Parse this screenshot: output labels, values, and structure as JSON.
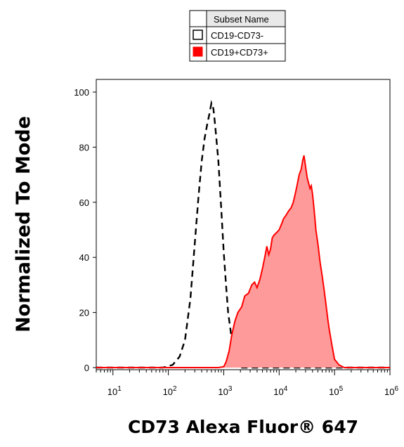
{
  "chart_data": {
    "type": "area",
    "xlabel": "CD73 Alexa Fluor® 647",
    "ylabel": "Normalized To Mode",
    "x_scale": "log",
    "xlim": [
      5,
      1000000
    ],
    "ylim": [
      0,
      100
    ],
    "y_ticks": [
      "0",
      "20",
      "40",
      "60",
      "80",
      "100"
    ],
    "x_ticks": [
      {
        "base": "10",
        "exp": "1",
        "value": 10
      },
      {
        "base": "10",
        "exp": "2",
        "value": 100
      },
      {
        "base": "10",
        "exp": "3",
        "value": 1000
      },
      {
        "base": "10",
        "exp": "4",
        "value": 10000
      },
      {
        "base": "10",
        "exp": "5",
        "value": 100000
      },
      {
        "base": "10",
        "exp": "6",
        "value": 1000000
      }
    ],
    "legend": {
      "placement": "top-center",
      "header": "Subset Name",
      "entries": [
        "CD19-CD73-",
        "CD19+CD73+"
      ]
    },
    "series": [
      {
        "name": "CD19-CD73-",
        "style": "dashed-outline",
        "color": "#000000",
        "points": [
          [
            5,
            0
          ],
          [
            80,
            0
          ],
          [
            120,
            1
          ],
          [
            160,
            4
          ],
          [
            200,
            10
          ],
          [
            250,
            25
          ],
          [
            300,
            45
          ],
          [
            350,
            62
          ],
          [
            400,
            75
          ],
          [
            450,
            83
          ],
          [
            500,
            88
          ],
          [
            550,
            92
          ],
          [
            600,
            96
          ],
          [
            650,
            94
          ],
          [
            700,
            88
          ],
          [
            800,
            75
          ],
          [
            900,
            58
          ],
          [
            1000,
            42
          ],
          [
            1100,
            30
          ],
          [
            1200,
            20
          ],
          [
            1400,
            10
          ],
          [
            1700,
            3
          ],
          [
            2000,
            0
          ],
          [
            1000000,
            0
          ]
        ]
      },
      {
        "name": "CD19+CD73+",
        "style": "filled",
        "color": "#ff0000",
        "fill": "#ff9a9a",
        "points": [
          [
            5,
            0
          ],
          [
            800,
            0
          ],
          [
            1000,
            0.3
          ],
          [
            1100,
            2
          ],
          [
            1250,
            6
          ],
          [
            1400,
            12
          ],
          [
            1600,
            17
          ],
          [
            1800,
            20
          ],
          [
            2100,
            22
          ],
          [
            2400,
            26
          ],
          [
            2800,
            27
          ],
          [
            3200,
            30
          ],
          [
            3600,
            31
          ],
          [
            4000,
            29
          ],
          [
            4500,
            32
          ],
          [
            5000,
            36
          ],
          [
            5500,
            40
          ],
          [
            6000,
            44
          ],
          [
            6500,
            41
          ],
          [
            7000,
            43
          ],
          [
            7500,
            47
          ],
          [
            8000,
            48
          ],
          [
            9000,
            49
          ],
          [
            10000,
            50
          ],
          [
            11000,
            52
          ],
          [
            12000,
            54
          ],
          [
            13000,
            55
          ],
          [
            14000,
            56
          ],
          [
            15000,
            57
          ],
          [
            16500,
            58
          ],
          [
            18000,
            60
          ],
          [
            19500,
            63
          ],
          [
            21000,
            66
          ],
          [
            23000,
            70
          ],
          [
            25000,
            72
          ],
          [
            26500,
            75
          ],
          [
            28000,
            77
          ],
          [
            30000,
            73
          ],
          [
            32000,
            69
          ],
          [
            34000,
            67
          ],
          [
            36000,
            65
          ],
          [
            38000,
            66
          ],
          [
            40000,
            63
          ],
          [
            43000,
            57
          ],
          [
            46000,
            50
          ],
          [
            50000,
            45
          ],
          [
            55000,
            38
          ],
          [
            60000,
            33
          ],
          [
            65000,
            28
          ],
          [
            70000,
            23
          ],
          [
            75000,
            18
          ],
          [
            80000,
            14
          ],
          [
            90000,
            8
          ],
          [
            100000,
            3
          ],
          [
            120000,
            1
          ],
          [
            150000,
            0
          ],
          [
            1000000,
            0
          ]
        ]
      }
    ]
  }
}
